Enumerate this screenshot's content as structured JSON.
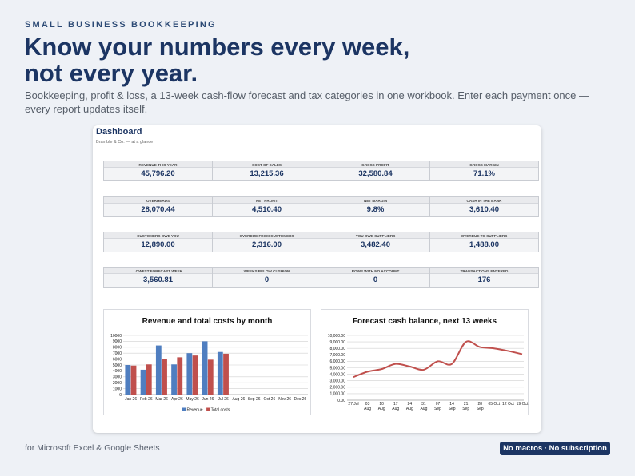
{
  "hero": {
    "eyebrow": "SMALL BUSINESS BOOKKEEPING",
    "headline_line1": "Know your numbers every week,",
    "headline_line2": "not every year.",
    "subhead": "Bookkeeping, profit & loss, a 13-week cash-flow forecast and tax categories in one workbook. Enter each payment once — every report updates itself."
  },
  "dashboard": {
    "title": "Dashboard",
    "subtitle": "Bramble & Co. — at a glance",
    "kpi_rows": [
      [
        {
          "label": "REVENUE THIS YEAR",
          "value": "45,796.20"
        },
        {
          "label": "COST OF SALES",
          "value": "13,215.36"
        },
        {
          "label": "GROSS PROFIT",
          "value": "32,580.84"
        },
        {
          "label": "GROSS MARGIN",
          "value": "71.1%"
        }
      ],
      [
        {
          "label": "OVERHEADS",
          "value": "28,070.44"
        },
        {
          "label": "NET PROFIT",
          "value": "4,510.40"
        },
        {
          "label": "NET MARGIN",
          "value": "9.8%"
        },
        {
          "label": "CASH IN THE BANK",
          "value": "3,610.40"
        }
      ],
      [
        {
          "label": "CUSTOMERS OWE YOU",
          "value": "12,890.00"
        },
        {
          "label": "OVERDUE FROM CUSTOMERS",
          "value": "2,316.00"
        },
        {
          "label": "YOU OWE SUPPLIERS",
          "value": "3,482.40"
        },
        {
          "label": "OVERDUE TO SUPPLIERS",
          "value": "1,488.00"
        }
      ],
      [
        {
          "label": "LOWEST FORECAST WEEK",
          "value": "3,560.81"
        },
        {
          "label": "WEEKS BELOW CUSHION",
          "value": "0"
        },
        {
          "label": "ROWS WITH NO ACCOUNT",
          "value": "0"
        },
        {
          "label": "TRANSACTIONS ENTERED",
          "value": "176"
        }
      ]
    ]
  },
  "chart_data": [
    {
      "type": "bar",
      "title": "Revenue and total costs by month",
      "categories": [
        "Jan 26",
        "Feb 26",
        "Mar 26",
        "Apr 26",
        "May 26",
        "Jun 26",
        "Jul 26",
        "Aug 26",
        "Sep 26",
        "Oct 26",
        "Nov 26",
        "Dec 26"
      ],
      "series": [
        {
          "name": "Revenue",
          "color": "#4f7ec0",
          "values": [
            5000,
            4200,
            8300,
            5100,
            7000,
            9000,
            7200,
            null,
            null,
            null,
            null,
            null
          ]
        },
        {
          "name": "Total costs",
          "color": "#c0504d",
          "values": [
            4900,
            5100,
            6000,
            6300,
            6600,
            5900,
            6900,
            null,
            null,
            null,
            null,
            null
          ]
        }
      ],
      "ylim": [
        0,
        10000
      ],
      "yticks": [
        "0",
        "1000",
        "2000",
        "3000",
        "4000",
        "5000",
        "6000",
        "7000",
        "8000",
        "9000",
        "10000"
      ],
      "grid": true,
      "legend": "bottom"
    },
    {
      "type": "line",
      "title": "Forecast cash balance, next 13 weeks",
      "x": [
        "27 Jul",
        "03 Aug",
        "10 Aug",
        "17 Aug",
        "24 Aug",
        "31 Aug",
        "07 Sep",
        "14 Sep",
        "21 Sep",
        "28 Sep",
        "05 Oct",
        "12 Oct",
        "19 Oct"
      ],
      "x_labels_top": [
        "27 Jul",
        "03",
        "10",
        "17",
        "24",
        "31",
        "07",
        "14",
        "21",
        "28",
        "05 Oct",
        "12 Oct",
        "19 Oct"
      ],
      "x_labels_bottom": [
        "",
        "Aug",
        "Aug",
        "Aug",
        "Aug",
        "Aug",
        "Sep",
        "Sep",
        "Sep",
        "Sep",
        "",
        "",
        ""
      ],
      "series": [
        {
          "color": "#c0504d",
          "values": [
            3560.81,
            4400,
            4800,
            5600,
            5200,
            4700,
            6000,
            5600,
            9000,
            8200,
            8000,
            7600,
            7100
          ]
        }
      ],
      "ylim": [
        0,
        10000
      ],
      "yticks": [
        "0.00",
        "1,000.00",
        "2,000.00",
        "3,000.00",
        "4,000.00",
        "5,000.00",
        "6,000.00",
        "7,000.00",
        "8,000.00",
        "9,000.00",
        "10,000.00"
      ],
      "grid": true
    }
  ],
  "footer": {
    "note": "for Microsoft Excel & Google Sheets",
    "badge": "No macros · No subscription"
  }
}
